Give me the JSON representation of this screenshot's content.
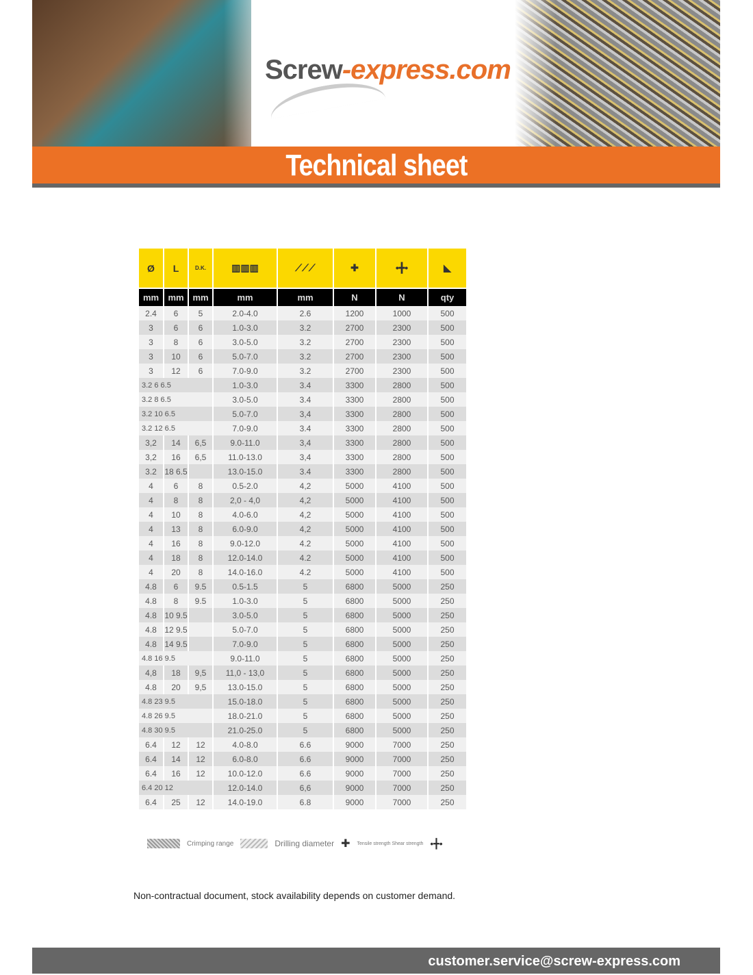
{
  "header": {
    "logo_main": "Screw",
    "logo_accent": "-express.com",
    "title": "Technical sheet"
  },
  "table": {
    "icon_headers": [
      "Ø",
      "L",
      "D.K.",
      "crimping-range-icon",
      "drilling-diameter-icon",
      "tensile-strength-icon",
      "shear-strength-icon",
      "box-icon"
    ],
    "units": [
      "mm",
      "mm",
      "mm",
      "mm",
      "mm",
      "N",
      "N",
      "qty"
    ],
    "rows": [
      [
        "2.4",
        "6",
        "5",
        "2.0-4.0",
        "2.6",
        "1200",
        "1000",
        "500"
      ],
      [
        "3",
        "6",
        "6",
        "1.0-3.0",
        "3.2",
        "2700",
        "2300",
        "500"
      ],
      [
        "3",
        "8",
        "6",
        "3.0-5.0",
        "3.2",
        "2700",
        "2300",
        "500"
      ],
      [
        "3",
        "10",
        "6",
        "5.0-7.0",
        "3.2",
        "2700",
        "2300",
        "500"
      ],
      [
        "3",
        "12",
        "6",
        "7.0-9.0",
        "3.2",
        "2700",
        "2300",
        "500"
      ],
      [
        "3.2 6 6.5",
        "1.0-3.0",
        "3.4",
        "3300",
        "2800",
        "500"
      ],
      [
        "3.2 8 6.5",
        "3.0-5.0",
        "3.4",
        "3300",
        "2800",
        "500"
      ],
      [
        "3.2 10 6.5",
        "5.0-7.0",
        "3,4",
        "3300",
        "2800",
        "500"
      ],
      [
        "3.2 12 6.5",
        "7.0-9.0",
        "3.4",
        "3300",
        "2800",
        "500"
      ],
      [
        "3,2",
        "14",
        "6,5",
        "9.0-11.0",
        "3,4",
        "3300",
        "2800",
        "500"
      ],
      [
        "3,2",
        "16",
        "6,5",
        "11.0-13.0",
        "3,4",
        "3300",
        "2800",
        "500"
      ],
      [
        "3.2",
        "18 6.5",
        "",
        "13.0-15.0",
        "3.4",
        "3300",
        "2800",
        "500"
      ],
      [
        "4",
        "6",
        "8",
        "0.5-2.0",
        "4,2",
        "5000",
        "4100",
        "500"
      ],
      [
        "4",
        "8",
        "8",
        "2,0 - 4,0",
        "4,2",
        "5000",
        "4100",
        "500"
      ],
      [
        "4",
        "10",
        "8",
        "4.0-6.0",
        "4,2",
        "5000",
        "4100",
        "500"
      ],
      [
        "4",
        "13",
        "8",
        "6.0-9.0",
        "4,2",
        "5000",
        "4100",
        "500"
      ],
      [
        "4",
        "16",
        "8",
        "9.0-12.0",
        "4.2",
        "5000",
        "4100",
        "500"
      ],
      [
        "4",
        "18",
        "8",
        "12.0-14.0",
        "4.2",
        "5000",
        "4100",
        "500"
      ],
      [
        "4",
        "20",
        "8",
        "14.0-16.0",
        "4.2",
        "5000",
        "4100",
        "500"
      ],
      [
        "4.8",
        "6",
        "9.5",
        "0.5-1.5",
        "5",
        "6800",
        "5000",
        "250"
      ],
      [
        "4.8",
        "8",
        "9.5",
        "1.0-3.0",
        "5",
        "6800",
        "5000",
        "250"
      ],
      [
        "4.8",
        "10 9.5",
        "",
        "3.0-5.0",
        "5",
        "6800",
        "5000",
        "250"
      ],
      [
        "4.8",
        "12 9.5",
        "",
        "5.0-7.0",
        "5",
        "6800",
        "5000",
        "250"
      ],
      [
        "4.8",
        "14 9.5",
        "",
        "7.0-9.0",
        "5",
        "6800",
        "5000",
        "250"
      ],
      [
        "4.8 16 9.5",
        "9.0-11.0",
        "5",
        "6800",
        "5000",
        "250"
      ],
      [
        "4,8",
        "18",
        "9,5",
        "11,0 - 13,0",
        "5",
        "6800",
        "5000",
        "250"
      ],
      [
        "4.8",
        "20",
        "9,5",
        "13.0-15.0",
        "5",
        "6800",
        "5000",
        "250"
      ],
      [
        "4.8 23 9.5",
        "15.0-18.0",
        "5",
        "6800",
        "5000",
        "250"
      ],
      [
        "4.8 26 9.5",
        "18.0-21.0",
        "5",
        "6800",
        "5000",
        "250"
      ],
      [
        "4.8 30 9.5",
        "21.0-25.0",
        "5",
        "6800",
        "5000",
        "250"
      ],
      [
        "6.4",
        "12",
        "12",
        "4.0-8.0",
        "6.6",
        "9000",
        "7000",
        "250"
      ],
      [
        "6.4",
        "14",
        "12",
        "6.0-8.0",
        "6.6",
        "9000",
        "7000",
        "250"
      ],
      [
        "6.4",
        "16",
        "12",
        "10.0-12.0",
        "6.6",
        "9000",
        "7000",
        "250"
      ],
      [
        "6.4 20 12",
        "12.0-14.0",
        "6,6",
        "9000",
        "7000",
        "250"
      ],
      [
        "6.4",
        "25",
        "12",
        "14.0-19.0",
        "6.8",
        "9000",
        "7000",
        "250"
      ]
    ]
  },
  "legend": {
    "crimping": "Crimping range",
    "drilling": "Drilling diameter",
    "strength": "Tensile strength Shear strength"
  },
  "note": "Non-contractual document, stock availability depends on customer demand.",
  "footer": {
    "email": "customer.service@screw-express.com"
  },
  "colors": {
    "orange": "#ec7125",
    "yellow": "#fbd800",
    "grey": "#666666"
  }
}
